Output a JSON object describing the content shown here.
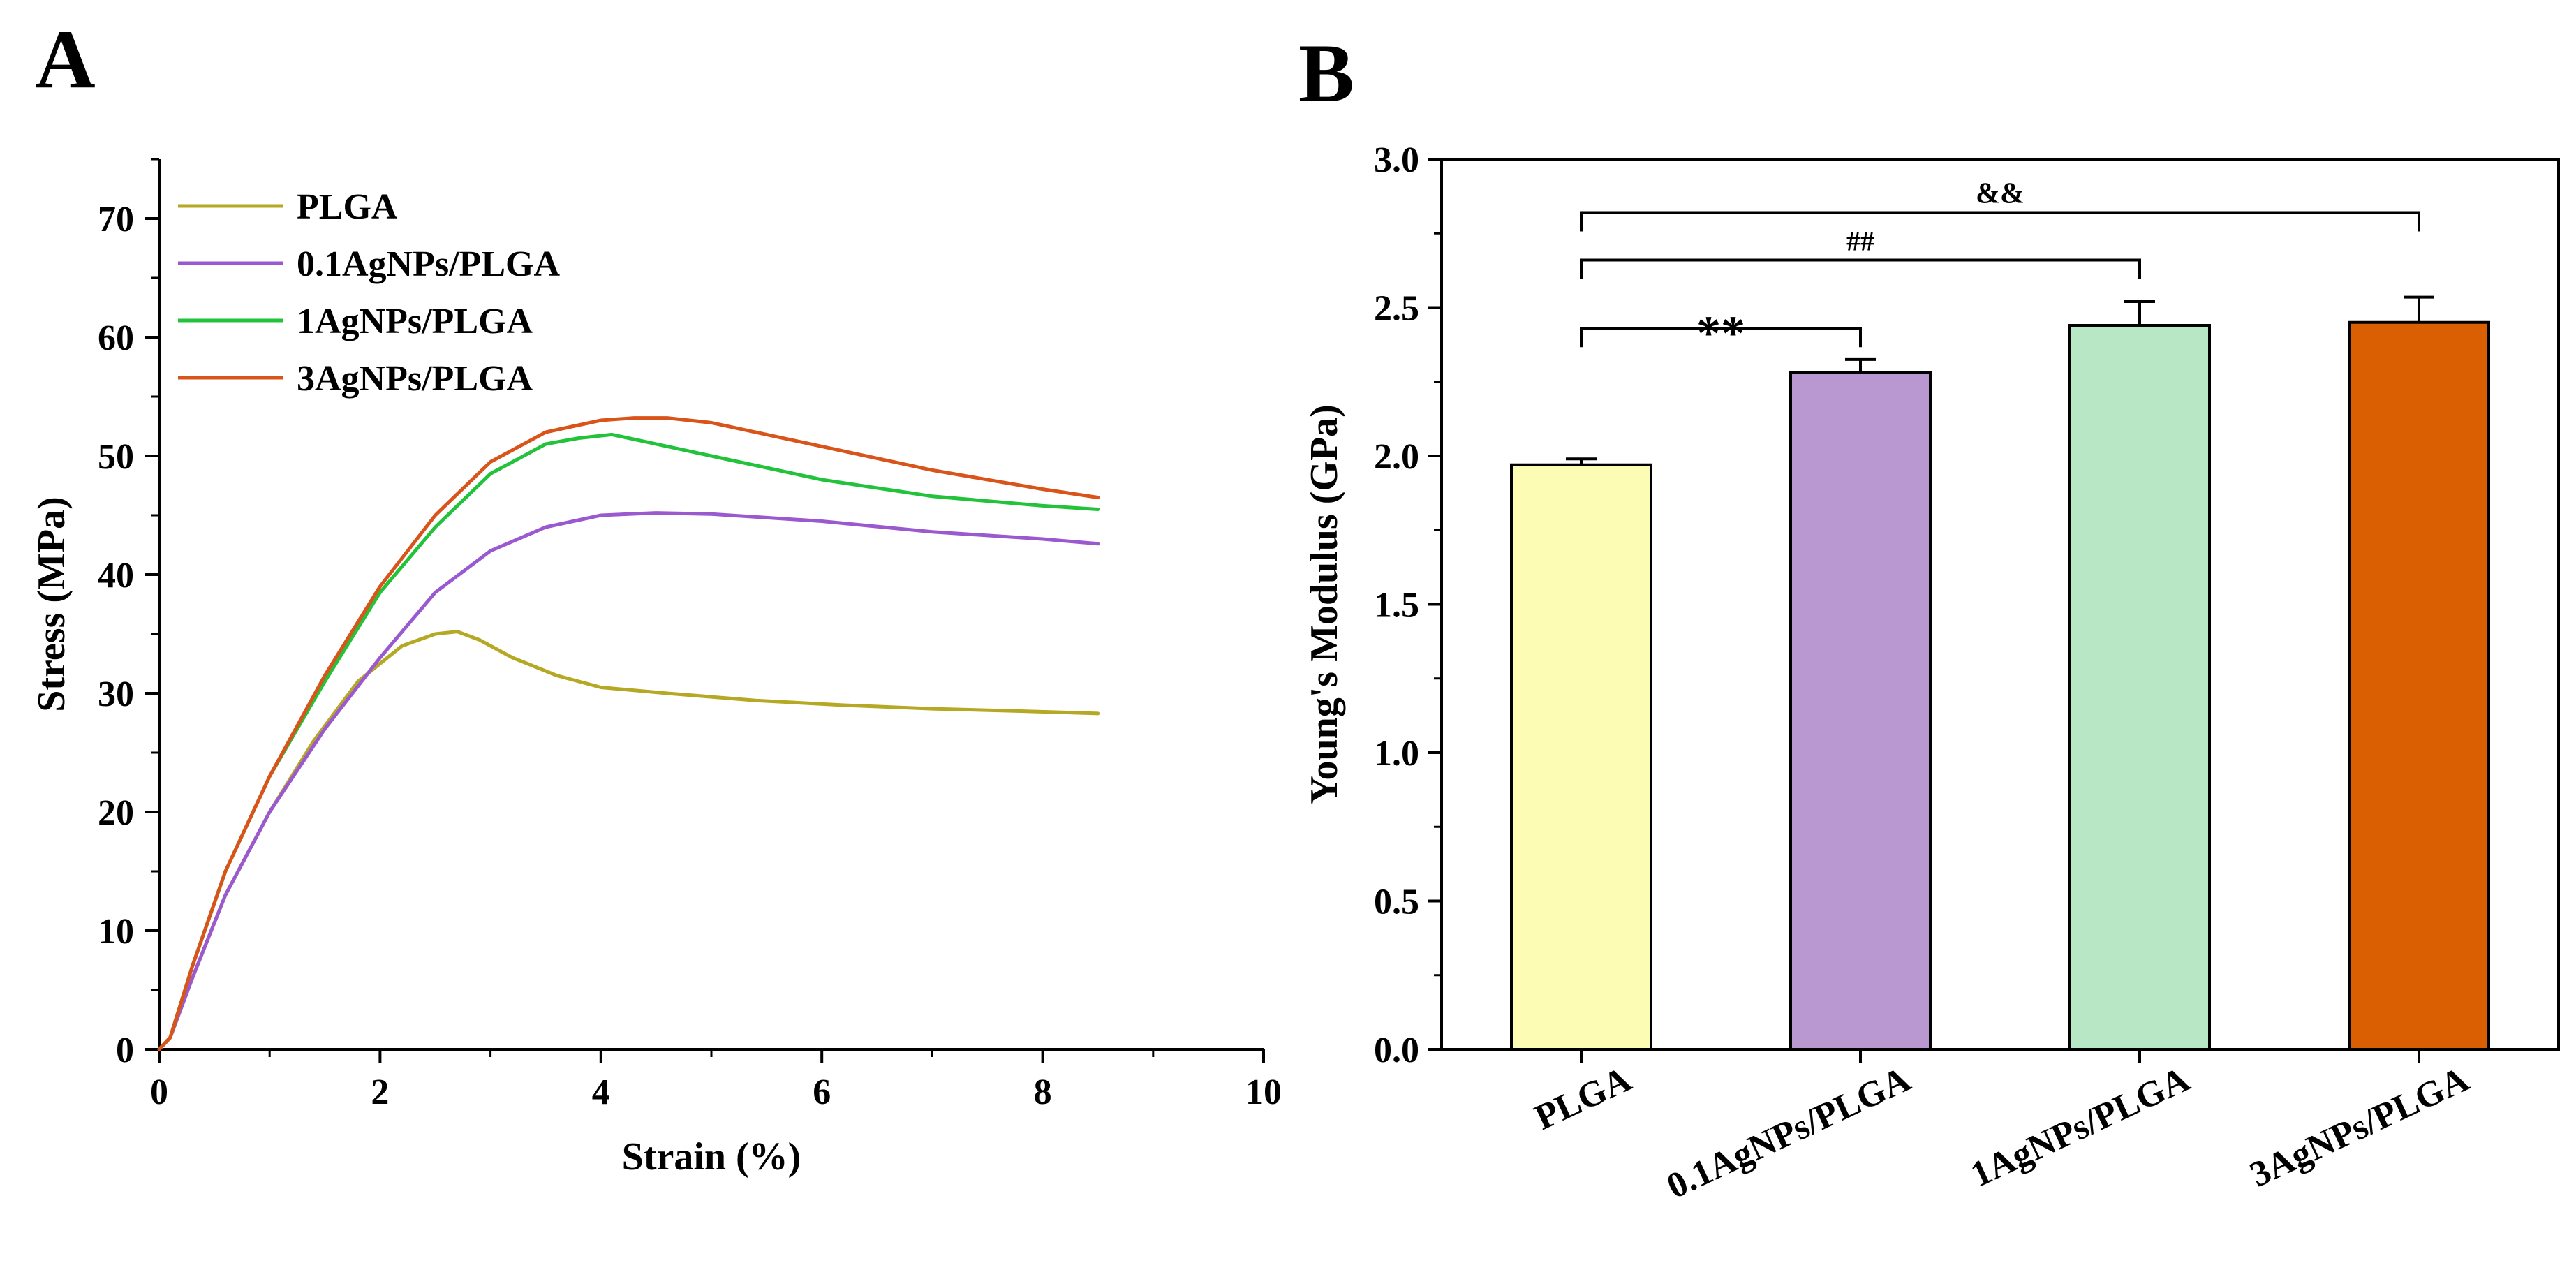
{
  "figure": {
    "panel_a_letter": "A",
    "panel_b_letter": "B"
  },
  "chart_data": [
    {
      "type": "line",
      "xlabel": "Strain (%)",
      "ylabel": "Stress (MPa)",
      "xlim": [
        0,
        10
      ],
      "ylim": [
        0,
        75
      ],
      "xticks": [
        0,
        2,
        4,
        6,
        8,
        10
      ],
      "yticks": [
        0,
        10,
        20,
        30,
        40,
        50,
        60,
        70
      ],
      "legend_position": "top-left",
      "series": [
        {
          "name": "PLGA",
          "color": "#b5a824",
          "x": [
            0,
            0.1,
            0.3,
            0.6,
            1.0,
            1.4,
            1.8,
            2.2,
            2.5,
            2.7,
            2.9,
            3.2,
            3.6,
            4.0,
            4.6,
            5.4,
            6.2,
            7.0,
            7.8,
            8.5
          ],
          "y": [
            0,
            1,
            6,
            13,
            20,
            26,
            31,
            34,
            35,
            35.2,
            34.5,
            33,
            31.5,
            30.5,
            30,
            29.4,
            29,
            28.7,
            28.5,
            28.3
          ]
        },
        {
          "name": "0.1AgNPs/PLGA",
          "color": "#9b59d0",
          "x": [
            0,
            0.1,
            0.3,
            0.6,
            1.0,
            1.5,
            2.0,
            2.5,
            3.0,
            3.5,
            4.0,
            4.5,
            5.0,
            5.5,
            6.0,
            7.0,
            8.0,
            8.5
          ],
          "y": [
            0,
            1,
            6,
            13,
            20,
            27,
            33,
            38.5,
            42,
            44,
            45,
            45.2,
            45.1,
            44.8,
            44.5,
            43.6,
            43,
            42.6
          ]
        },
        {
          "name": "1AgNPs/PLGA",
          "color": "#22c33a",
          "x": [
            0,
            0.1,
            0.3,
            0.6,
            1.0,
            1.5,
            2.0,
            2.5,
            3.0,
            3.5,
            3.8,
            4.1,
            4.4,
            5.0,
            6.0,
            7.0,
            8.0,
            8.5
          ],
          "y": [
            0,
            1,
            7,
            15,
            23,
            31,
            38.5,
            44,
            48.5,
            51,
            51.5,
            51.8,
            51.2,
            50,
            48,
            46.6,
            45.8,
            45.5
          ]
        },
        {
          "name": "3AgNPs/PLGA",
          "color": "#d8541a",
          "x": [
            0,
            0.1,
            0.3,
            0.6,
            1.0,
            1.5,
            2.0,
            2.5,
            3.0,
            3.5,
            4.0,
            4.3,
            4.6,
            5.0,
            6.0,
            7.0,
            8.0,
            8.5
          ],
          "y": [
            0,
            1,
            7,
            15,
            23,
            31.5,
            39,
            45,
            49.5,
            52,
            53,
            53.2,
            53.2,
            52.8,
            50.8,
            48.8,
            47.2,
            46.5
          ]
        }
      ]
    },
    {
      "type": "bar",
      "xlabel": "",
      "ylabel": "Young's Modulus (GPa)",
      "ylim": [
        0,
        3.0
      ],
      "yticks": [
        "0.0",
        "0.5",
        "1.0",
        "1.5",
        "2.0",
        "2.5",
        "3.0"
      ],
      "categories": [
        "PLGA",
        "0.1AgNPs/PLGA",
        "1AgNPs/PLGA",
        "3AgNPs/PLGA"
      ],
      "values": [
        1.97,
        2.28,
        2.44,
        2.45
      ],
      "errors": [
        0.02,
        0.045,
        0.08,
        0.085
      ],
      "colors": [
        "#fdfcb4",
        "#b997d0",
        "#b8e7c6",
        "#d95f02"
      ],
      "annotations": [
        {
          "from": "PLGA",
          "to": "0.1AgNPs/PLGA",
          "label": "**"
        },
        {
          "from": "PLGA",
          "to": "1AgNPs/PLGA",
          "label": "##"
        },
        {
          "from": "PLGA",
          "to": "3AgNPs/PLGA",
          "label": "&&"
        }
      ]
    }
  ]
}
